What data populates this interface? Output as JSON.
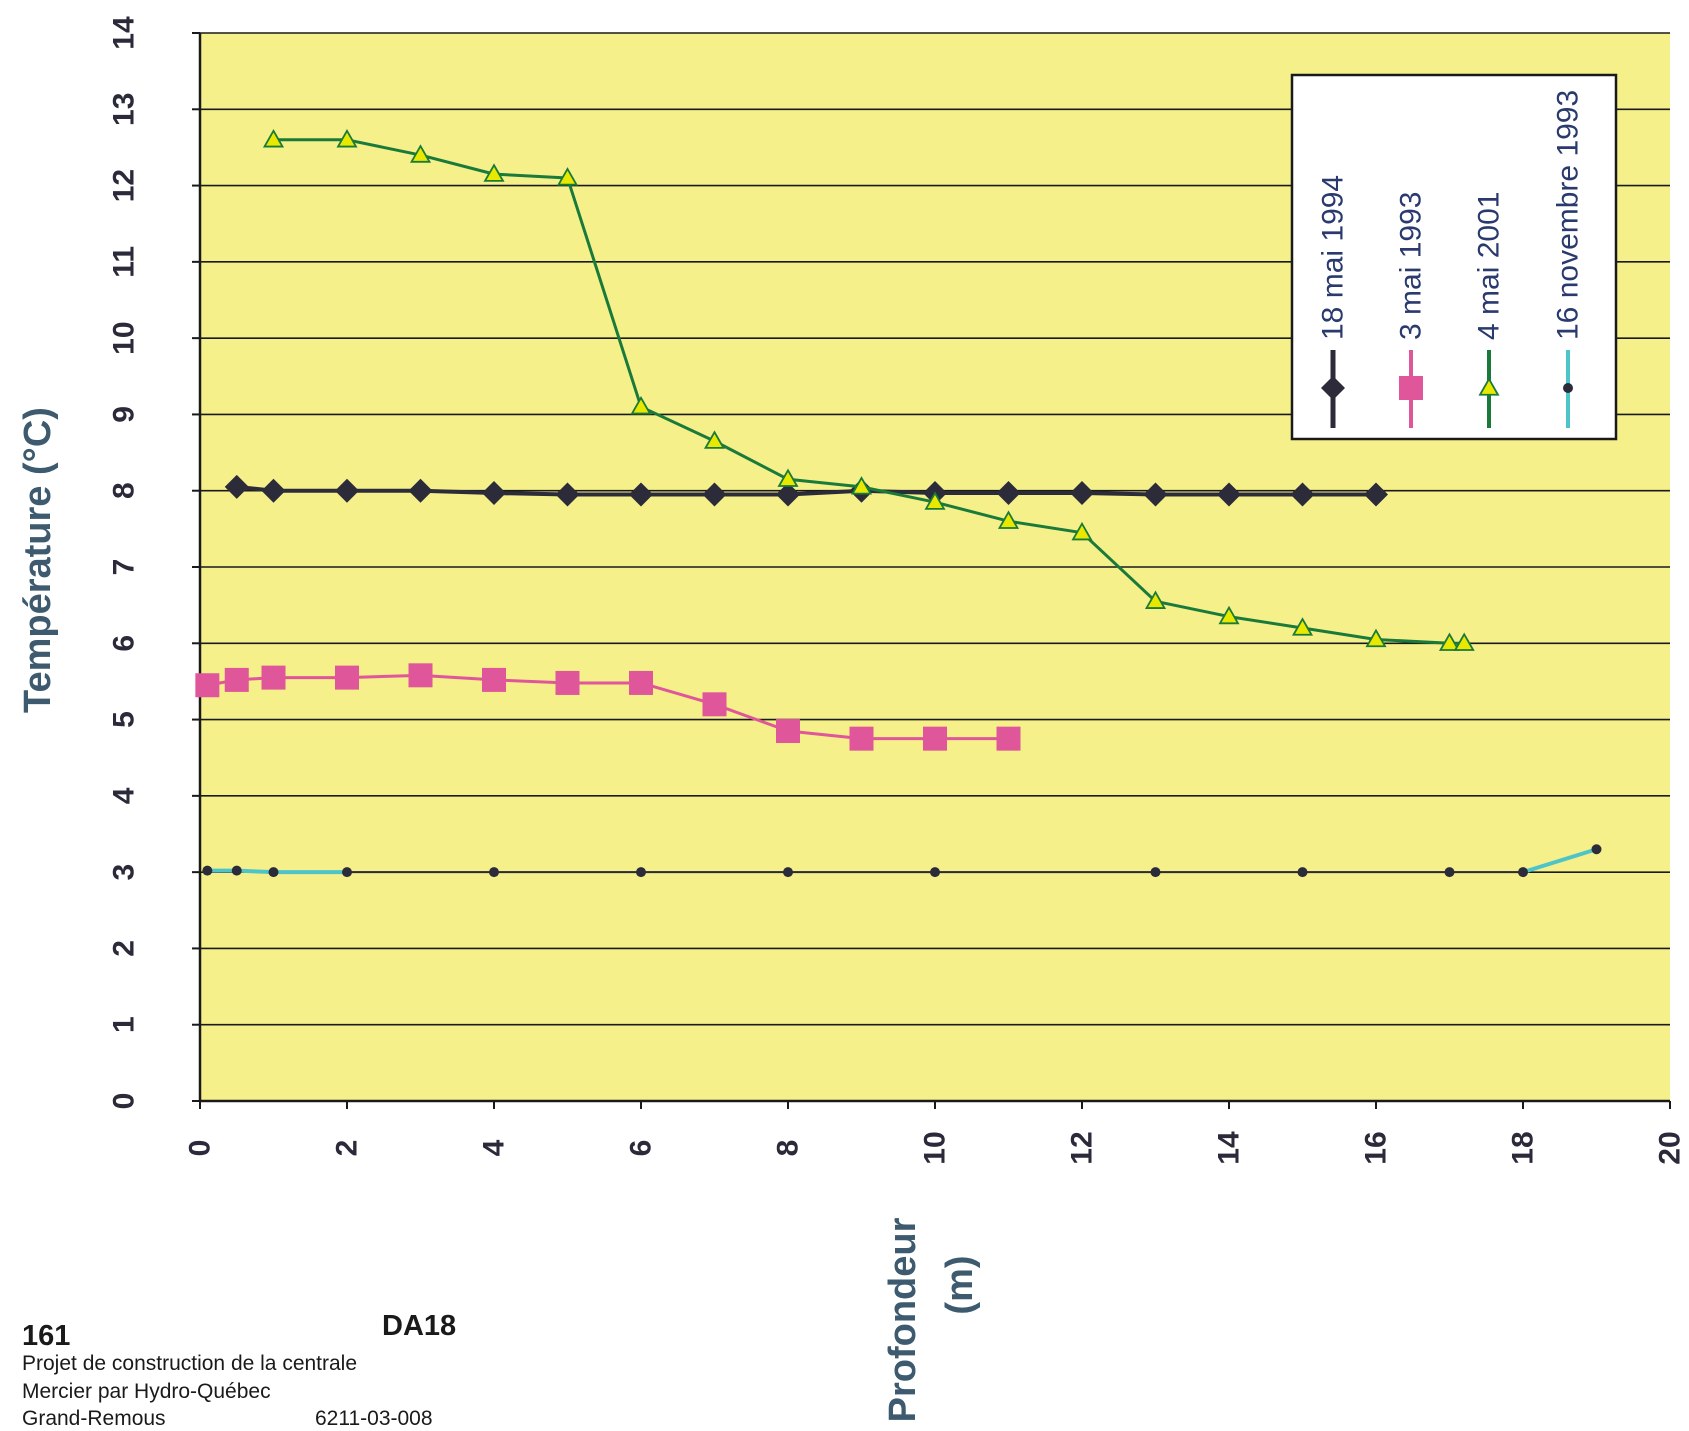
{
  "chart_data": {
    "type": "line",
    "ylabel": "Température (°C)",
    "xlabel_line1": "Profondeur",
    "xlabel_line2": "(m)",
    "xlim": [
      0,
      20
    ],
    "ylim": [
      0,
      14
    ],
    "xticks": [
      0,
      2,
      4,
      6,
      8,
      10,
      12,
      14,
      16,
      18,
      20
    ],
    "yticks": [
      0,
      1,
      2,
      3,
      4,
      5,
      6,
      7,
      8,
      9,
      10,
      11,
      12,
      13,
      14
    ],
    "grid": "horizontal",
    "legend_position": "top-right",
    "plot_background": "#f5f08a",
    "series": [
      {
        "name": "18 mai 1994",
        "color": "#2b2b3a",
        "marker": "diamond",
        "x": [
          0.5,
          1,
          2,
          3,
          4,
          5,
          6,
          7,
          8,
          9,
          10,
          11,
          12,
          13,
          14,
          15,
          16
        ],
        "y": [
          8.05,
          8.0,
          8.0,
          8.0,
          7.97,
          7.95,
          7.95,
          7.95,
          7.95,
          8.0,
          7.97,
          7.97,
          7.97,
          7.95,
          7.95,
          7.95,
          7.95
        ]
      },
      {
        "name": "3 mai 1993",
        "color": "#e0569a",
        "marker": "square",
        "x": [
          0.1,
          0.5,
          1,
          2,
          3,
          4,
          5,
          6,
          7,
          8,
          9,
          10,
          11
        ],
        "y": [
          5.45,
          5.52,
          5.55,
          5.55,
          5.58,
          5.52,
          5.48,
          5.48,
          5.2,
          4.85,
          4.75,
          4.75,
          4.75
        ]
      },
      {
        "name": "4 mai 2001",
        "color": "#1a7a3a",
        "marker": "triangle",
        "marker_fill": "#e8e800",
        "x": [
          1,
          2,
          3,
          4,
          5,
          6,
          7,
          8,
          9,
          10,
          11,
          12,
          13,
          14,
          15,
          16,
          17,
          17.2
        ],
        "y": [
          12.6,
          12.6,
          12.4,
          12.15,
          12.1,
          9.1,
          8.65,
          8.15,
          8.05,
          7.85,
          7.6,
          7.45,
          6.55,
          6.35,
          6.2,
          6.05,
          6.0,
          6.0
        ]
      },
      {
        "name": "16 novembre 1993",
        "color": "#4fc4c8",
        "marker": "circle",
        "x": [
          0.1,
          0.5,
          1,
          2,
          4,
          6,
          8,
          10,
          13,
          15,
          17,
          18,
          19
        ],
        "y": [
          3.02,
          3.02,
          3.0,
          3.0,
          3.0,
          3.0,
          3.0,
          3.0,
          3.0,
          3.0,
          3.0,
          3.0,
          3.3
        ]
      }
    ]
  },
  "footer": {
    "number": "161",
    "code": "DA18",
    "line1": "Projet de construction de la centrale",
    "line2": "Mercier par Hydro-Québec",
    "line3": "Grand-Remous",
    "ref": "6211-03-008"
  }
}
